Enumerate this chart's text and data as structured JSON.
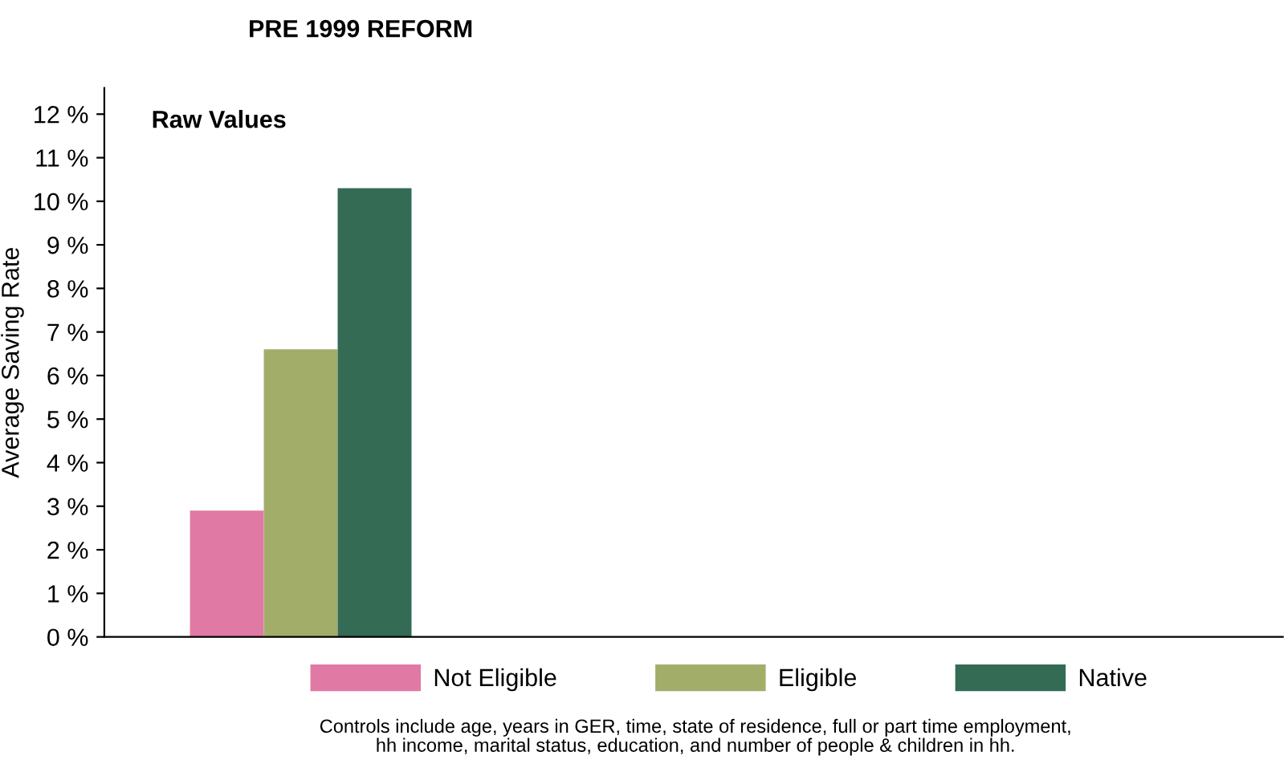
{
  "chart_data": {
    "type": "bar",
    "title": "PRE 1999 REFORM",
    "ylabel": "Average Saving Rate",
    "categories": [
      null,
      null,
      null
    ],
    "series": [
      {
        "name": "Not Eligible",
        "color": "#e07aa5",
        "values": [
          2.9,
          null,
          null
        ]
      },
      {
        "name": "Eligible",
        "color": "#a3ad6a",
        "values": [
          6.6,
          null,
          null
        ]
      },
      {
        "name": "Native",
        "color": "#336b55",
        "values": [
          10.3,
          null,
          null
        ]
      }
    ],
    "ylim": [
      0,
      12.6
    ],
    "yticks": [
      {
        "value": 0,
        "label": "0 %"
      },
      {
        "value": 1,
        "label": "1 %"
      },
      {
        "value": 2,
        "label": "2 %"
      },
      {
        "value": 3,
        "label": "3 %"
      },
      {
        "value": 4,
        "label": "4 %"
      },
      {
        "value": 5,
        "label": "5 %"
      },
      {
        "value": 6,
        "label": "6 %"
      },
      {
        "value": 7,
        "label": "7 %"
      },
      {
        "value": 8,
        "label": "8 %"
      },
      {
        "value": 9,
        "label": "9 %"
      },
      {
        "value": 10,
        "label": "10 %"
      },
      {
        "value": 11,
        "label": "11 %"
      },
      {
        "value": 12,
        "label": "12 %"
      }
    ],
    "annotations": [
      "Raw Values",
      "Controls include age, years in GER, time, state of residence, full or part time employment,\nhh income, marital status, education, and number of people & children in hh."
    ],
    "grid": false,
    "legend": "bottom"
  }
}
